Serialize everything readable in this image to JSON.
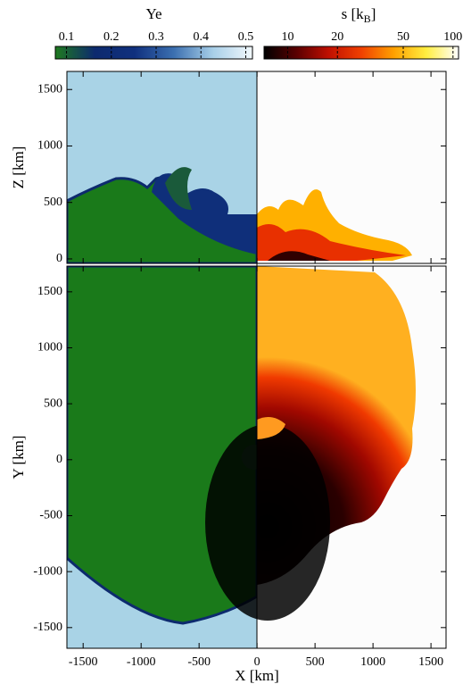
{
  "chart_data": {
    "type": "field",
    "colorbars": [
      {
        "title": "Ye",
        "lim": [
          0.075,
          0.515
        ],
        "ticks": [
          0.1,
          0.2,
          0.3,
          0.4,
          0.5
        ],
        "log": false,
        "colors": [
          "#1f7a1f",
          "#0d2a6e",
          "#10307e",
          "#3b6fb0",
          "#a8cfe8",
          "#f2f8fc"
        ]
      },
      {
        "title": "s [k",
        "title_sub": "B",
        "title_end": "]",
        "lim": [
          7.2,
          108
        ],
        "ticks": [
          10,
          20,
          50,
          100
        ],
        "log": true,
        "colors": [
          "#000000",
          "#5a0000",
          "#c01000",
          "#f04000",
          "#ffa000",
          "#ffee40",
          "#ffffff"
        ]
      }
    ],
    "xlabel": "X [km]",
    "xlim": [
      -1640,
      1630
    ],
    "xticks": [
      -1500,
      -1000,
      -500,
      0,
      500,
      1000,
      1500
    ],
    "panels": [
      {
        "ylabel": "Z [km]",
        "ylim": [
          -40,
          1660
        ],
        "yticks": [
          0,
          500,
          1000,
          1500
        ]
      },
      {
        "ylabel": "Y [km]",
        "ylim": [
          -1685,
          1730
        ],
        "yticks": [
          -1500,
          -1000,
          -500,
          0,
          500,
          1000,
          1500
        ]
      }
    ]
  }
}
